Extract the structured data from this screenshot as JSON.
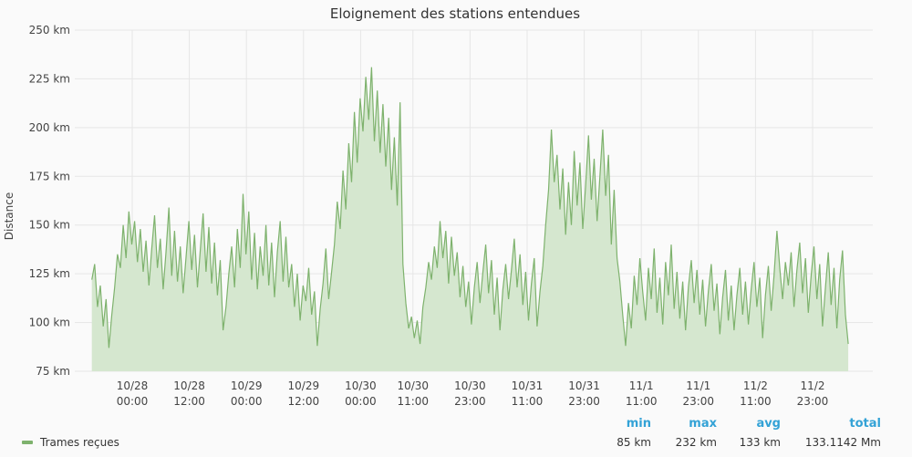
{
  "chart_data": {
    "type": "area",
    "title": "Eloignement des stations entendues",
    "ylabel": "Distance",
    "xlabel": "",
    "ylim": [
      75,
      250
    ],
    "y_ticks": [
      "250 km",
      "225 km",
      "200 km",
      "175 km",
      "150 km",
      "125 km",
      "100 km",
      "75 km"
    ],
    "y_tick_values": [
      250,
      225,
      200,
      175,
      150,
      125,
      100,
      75
    ],
    "x_range_hours": [
      -29,
      176
    ],
    "x_ticks": [
      {
        "date": "10/28",
        "time": "00:00",
        "hour": 0
      },
      {
        "date": "10/28",
        "time": "12:00",
        "hour": 12
      },
      {
        "date": "10/29",
        "time": "00:00",
        "hour": 24
      },
      {
        "date": "10/29",
        "time": "12:00",
        "hour": 36
      },
      {
        "date": "10/30",
        "time": "00:00",
        "hour": 48
      },
      {
        "date": "10/30",
        "time": "11:00",
        "hour": 59
      },
      {
        "date": "10/30",
        "time": "23:00",
        "hour": 71
      },
      {
        "date": "10/31",
        "time": "11:00",
        "hour": 83
      },
      {
        "date": "10/31",
        "time": "23:00",
        "hour": 95
      },
      {
        "date": "11/1",
        "time": "11:00",
        "hour": 107
      },
      {
        "date": "11/1",
        "time": "23:00",
        "hour": 119
      },
      {
        "date": "11/2",
        "time": "11:00",
        "hour": 131
      },
      {
        "date": "11/2",
        "time": "23:00",
        "hour": 143
      }
    ],
    "grid": true,
    "color": "#7eb26d",
    "fill": "#d5e7cf",
    "series": [
      {
        "name": "Trames reçues",
        "points": [
          [
            -8.5,
            122
          ],
          [
            -7.9,
            130
          ],
          [
            -7.3,
            108
          ],
          [
            -6.7,
            119
          ],
          [
            -6.1,
            98
          ],
          [
            -5.5,
            112
          ],
          [
            -4.9,
            87
          ],
          [
            -4.3,
            104
          ],
          [
            -3.7,
            118
          ],
          [
            -3.1,
            135
          ],
          [
            -2.5,
            128
          ],
          [
            -1.9,
            150
          ],
          [
            -1.3,
            133
          ],
          [
            -0.7,
            157
          ],
          [
            -0.1,
            140
          ],
          [
            0.5,
            152
          ],
          [
            1.1,
            131
          ],
          [
            1.7,
            148
          ],
          [
            2.3,
            126
          ],
          [
            2.9,
            142
          ],
          [
            3.5,
            119
          ],
          [
            4.1,
            138
          ],
          [
            4.7,
            155
          ],
          [
            5.3,
            128
          ],
          [
            5.9,
            143
          ],
          [
            6.5,
            117
          ],
          [
            7.1,
            136
          ],
          [
            7.7,
            159
          ],
          [
            8.3,
            124
          ],
          [
            8.9,
            147
          ],
          [
            9.5,
            121
          ],
          [
            10.1,
            139
          ],
          [
            10.7,
            115
          ],
          [
            11.3,
            133
          ],
          [
            11.9,
            152
          ],
          [
            12.5,
            127
          ],
          [
            13.1,
            145
          ],
          [
            13.7,
            118
          ],
          [
            14.3,
            137
          ],
          [
            14.9,
            156
          ],
          [
            15.5,
            126
          ],
          [
            16.1,
            149
          ],
          [
            16.7,
            120
          ],
          [
            17.3,
            141
          ],
          [
            17.9,
            114
          ],
          [
            18.5,
            132
          ],
          [
            19.1,
            96
          ],
          [
            19.7,
            108
          ],
          [
            20.3,
            125
          ],
          [
            20.9,
            139
          ],
          [
            21.5,
            118
          ],
          [
            22.1,
            148
          ],
          [
            22.7,
            128
          ],
          [
            23.3,
            166
          ],
          [
            23.9,
            135
          ],
          [
            24.5,
            157
          ],
          [
            25.1,
            122
          ],
          [
            25.7,
            146
          ],
          [
            26.3,
            117
          ],
          [
            26.9,
            139
          ],
          [
            27.5,
            124
          ],
          [
            28.1,
            150
          ],
          [
            28.7,
            119
          ],
          [
            29.3,
            141
          ],
          [
            29.9,
            113
          ],
          [
            30.5,
            136
          ],
          [
            31.1,
            152
          ],
          [
            31.7,
            121
          ],
          [
            32.3,
            144
          ],
          [
            32.9,
            118
          ],
          [
            33.5,
            130
          ],
          [
            34.1,
            108
          ],
          [
            34.7,
            125
          ],
          [
            35.3,
            101
          ],
          [
            35.9,
            119
          ],
          [
            36.5,
            111
          ],
          [
            37.1,
            128
          ],
          [
            37.7,
            104
          ],
          [
            38.3,
            116
          ],
          [
            38.9,
            88
          ],
          [
            39.5,
            107
          ],
          [
            40.1,
            120
          ],
          [
            40.7,
            138
          ],
          [
            41.3,
            112
          ],
          [
            41.9,
            126
          ],
          [
            42.5,
            140
          ],
          [
            43.1,
            162
          ],
          [
            43.7,
            148
          ],
          [
            44.3,
            178
          ],
          [
            44.9,
            158
          ],
          [
            45.5,
            192
          ],
          [
            46.1,
            172
          ],
          [
            46.7,
            208
          ],
          [
            47.3,
            182
          ],
          [
            47.9,
            215
          ],
          [
            48.5,
            198
          ],
          [
            49.1,
            226
          ],
          [
            49.7,
            204
          ],
          [
            50.3,
            231
          ],
          [
            50.9,
            193
          ],
          [
            51.5,
            219
          ],
          [
            52.1,
            187
          ],
          [
            52.7,
            212
          ],
          [
            53.3,
            180
          ],
          [
            53.9,
            205
          ],
          [
            54.5,
            168
          ],
          [
            55.1,
            195
          ],
          [
            55.7,
            160
          ],
          [
            56.3,
            213
          ],
          [
            56.9,
            130
          ],
          [
            57.5,
            110
          ],
          [
            58.1,
            97
          ],
          [
            58.7,
            103
          ],
          [
            59.3,
            92
          ],
          [
            59.9,
            101
          ],
          [
            60.5,
            89
          ],
          [
            61.1,
            108
          ],
          [
            61.7,
            118
          ],
          [
            62.3,
            131
          ],
          [
            62.9,
            122
          ],
          [
            63.5,
            139
          ],
          [
            64.1,
            128
          ],
          [
            64.7,
            152
          ],
          [
            65.3,
            133
          ],
          [
            65.9,
            147
          ],
          [
            66.5,
            120
          ],
          [
            67.1,
            144
          ],
          [
            67.7,
            124
          ],
          [
            68.3,
            136
          ],
          [
            68.9,
            113
          ],
          [
            69.5,
            129
          ],
          [
            70.1,
            108
          ],
          [
            70.7,
            121
          ],
          [
            71.3,
            99
          ],
          [
            71.9,
            118
          ],
          [
            72.5,
            131
          ],
          [
            73.1,
            110
          ],
          [
            73.7,
            126
          ],
          [
            74.3,
            140
          ],
          [
            74.9,
            115
          ],
          [
            75.5,
            132
          ],
          [
            76.1,
            104
          ],
          [
            76.7,
            123
          ],
          [
            77.3,
            96
          ],
          [
            77.9,
            117
          ],
          [
            78.5,
            130
          ],
          [
            79.1,
            112
          ],
          [
            79.7,
            127
          ],
          [
            80.3,
            143
          ],
          [
            80.9,
            118
          ],
          [
            81.5,
            135
          ],
          [
            82.1,
            109
          ],
          [
            82.7,
            126
          ],
          [
            83.3,
            101
          ],
          [
            83.9,
            120
          ],
          [
            84.5,
            133
          ],
          [
            85.1,
            98
          ],
          [
            85.7,
            116
          ],
          [
            86.3,
            129
          ],
          [
            86.9,
            150
          ],
          [
            87.5,
            168
          ],
          [
            88.1,
            199
          ],
          [
            88.7,
            172
          ],
          [
            89.3,
            186
          ],
          [
            89.9,
            158
          ],
          [
            90.5,
            179
          ],
          [
            91.1,
            145
          ],
          [
            91.7,
            172
          ],
          [
            92.3,
            150
          ],
          [
            92.9,
            188
          ],
          [
            93.5,
            160
          ],
          [
            94.1,
            182
          ],
          [
            94.7,
            148
          ],
          [
            95.3,
            170
          ],
          [
            95.9,
            196
          ],
          [
            96.5,
            163
          ],
          [
            97.1,
            184
          ],
          [
            97.7,
            152
          ],
          [
            98.3,
            175
          ],
          [
            98.9,
            199
          ],
          [
            99.5,
            165
          ],
          [
            100.1,
            186
          ],
          [
            100.7,
            140
          ],
          [
            101.3,
            168
          ],
          [
            101.9,
            133
          ],
          [
            102.5,
            121
          ],
          [
            103.1,
            104
          ],
          [
            103.7,
            88
          ],
          [
            104.3,
            110
          ],
          [
            104.9,
            97
          ],
          [
            105.5,
            124
          ],
          [
            106.1,
            109
          ],
          [
            106.7,
            133
          ],
          [
            107.3,
            116
          ],
          [
            107.9,
            101
          ],
          [
            108.5,
            128
          ],
          [
            109.1,
            112
          ],
          [
            109.7,
            138
          ],
          [
            110.3,
            105
          ],
          [
            110.9,
            123
          ],
          [
            111.5,
            99
          ],
          [
            112.1,
            131
          ],
          [
            112.7,
            114
          ],
          [
            113.3,
            140
          ],
          [
            113.9,
            107
          ],
          [
            114.5,
            126
          ],
          [
            115.1,
            102
          ],
          [
            115.7,
            121
          ],
          [
            116.3,
            96
          ],
          [
            116.9,
            118
          ],
          [
            117.5,
            132
          ],
          [
            118.1,
            110
          ],
          [
            118.7,
            127
          ],
          [
            119.3,
            104
          ],
          [
            119.9,
            122
          ],
          [
            120.5,
            98
          ],
          [
            121.1,
            116
          ],
          [
            121.7,
            130
          ],
          [
            122.3,
            106
          ],
          [
            122.9,
            120
          ],
          [
            123.5,
            94
          ],
          [
            124.1,
            113
          ],
          [
            124.7,
            127
          ],
          [
            125.3,
            101
          ],
          [
            125.9,
            119
          ],
          [
            126.5,
            96
          ],
          [
            127.1,
            114
          ],
          [
            127.7,
            128
          ],
          [
            128.3,
            104
          ],
          [
            128.9,
            121
          ],
          [
            129.5,
            99
          ],
          [
            130.1,
            117
          ],
          [
            130.7,
            131
          ],
          [
            131.3,
            108
          ],
          [
            131.9,
            123
          ],
          [
            132.5,
            92
          ],
          [
            133.1,
            114
          ],
          [
            133.7,
            129
          ],
          [
            134.3,
            106
          ],
          [
            134.9,
            124
          ],
          [
            135.5,
            147
          ],
          [
            136.1,
            128
          ],
          [
            136.7,
            112
          ],
          [
            137.3,
            131
          ],
          [
            137.9,
            119
          ],
          [
            138.5,
            136
          ],
          [
            139.1,
            108
          ],
          [
            139.7,
            127
          ],
          [
            140.3,
            141
          ],
          [
            140.9,
            115
          ],
          [
            141.5,
            133
          ],
          [
            142.1,
            105
          ],
          [
            142.7,
            124
          ],
          [
            143.3,
            139
          ],
          [
            143.9,
            112
          ],
          [
            144.5,
            130
          ],
          [
            145.1,
            98
          ],
          [
            145.7,
            118
          ],
          [
            146.3,
            136
          ],
          [
            146.9,
            109
          ],
          [
            147.5,
            128
          ],
          [
            148.1,
            97
          ],
          [
            148.7,
            122
          ],
          [
            149.3,
            137
          ],
          [
            149.9,
            104
          ],
          [
            150.5,
            89
          ]
        ]
      }
    ],
    "legend": {
      "position": "bottom",
      "headers": {
        "min": "min",
        "max": "max",
        "avg": "avg",
        "total": "total"
      },
      "values": {
        "min": "85 km",
        "max": "232 km",
        "avg": "133 km",
        "total": "133.1142 Mm"
      }
    }
  }
}
